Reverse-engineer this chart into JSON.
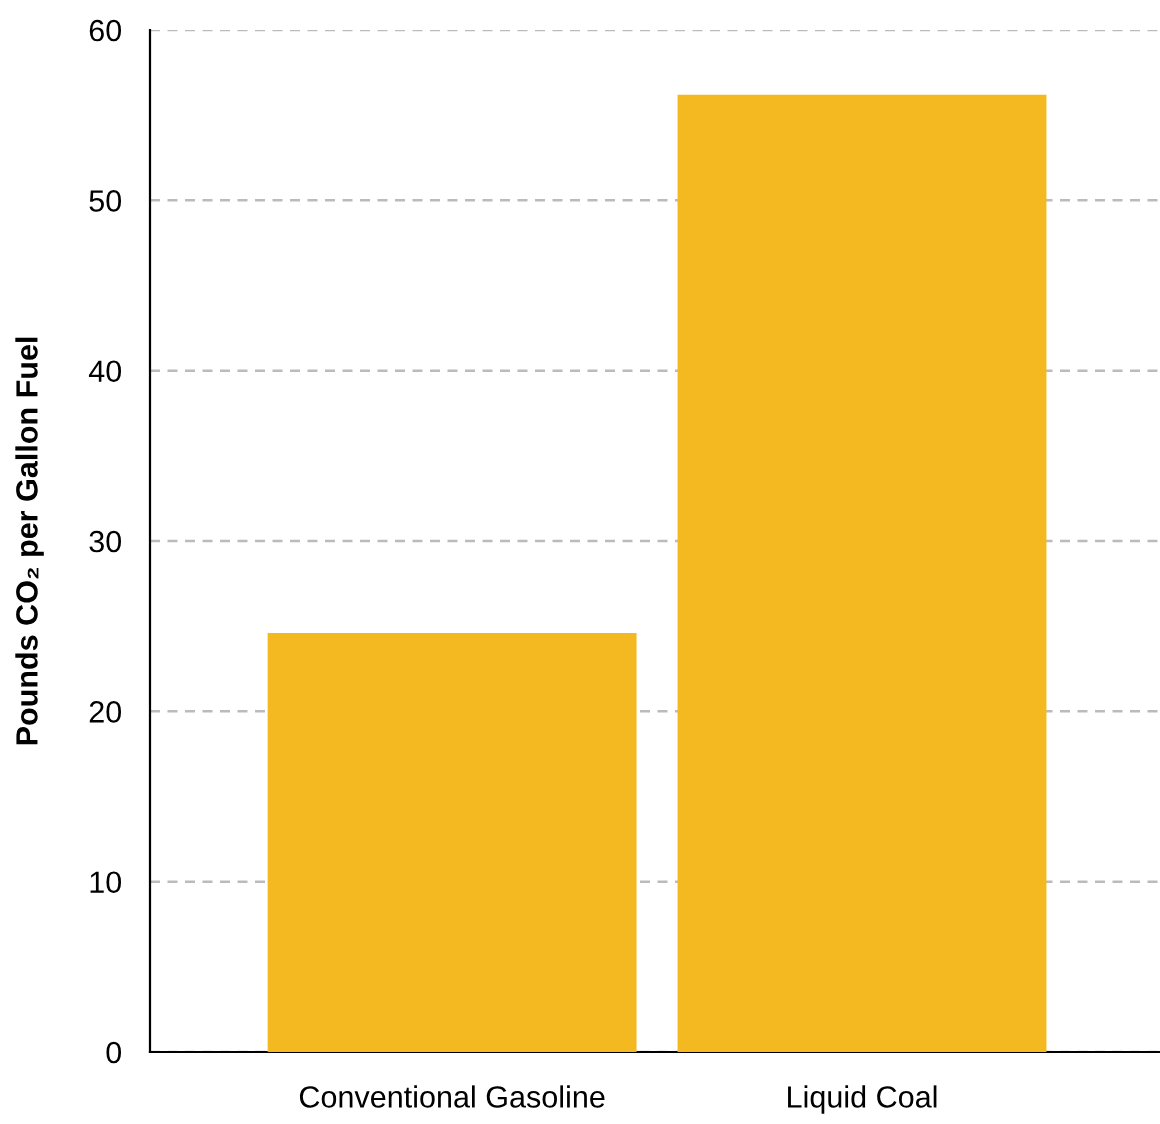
{
  "chart_data": {
    "type": "bar",
    "ylabel": "Pounds CO₂ per Gallon Fuel",
    "categories": [
      "Conventional Gasoline",
      "Liquid Coal"
    ],
    "values": [
      24.6,
      56.2
    ],
    "color": "#f4b920",
    "ylim": [
      0,
      60
    ],
    "yticks": [
      0,
      10,
      20,
      30,
      40,
      50,
      60
    ],
    "grid": "y"
  }
}
